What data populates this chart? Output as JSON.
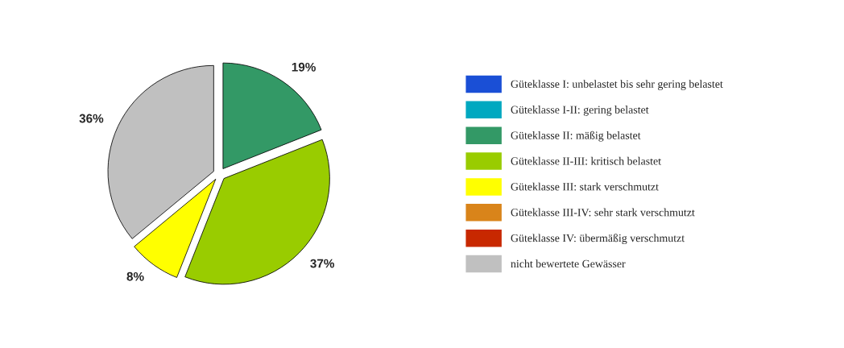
{
  "chart_data": {
    "type": "pie",
    "categories": [
      "Güteklasse I: unbelastet bis sehr gering belastet",
      "Güteklasse I-II: gering belastet",
      "Güteklasse II: mäßig belastet",
      "Güteklasse II-III: kritisch belastet",
      "Güteklasse III: stark verschmutzt",
      "Güteklasse III-IV: sehr stark verschmutzt",
      "Güteklasse IV: übermäßig verschmutzt",
      "nicht bewertete Gewässer"
    ],
    "values": [
      0,
      0,
      19,
      37,
      8,
      0,
      0,
      36
    ],
    "colors": [
      "#1a4fd6",
      "#00a8c0",
      "#339966",
      "#99cc00",
      "#ffff00",
      "#d9841a",
      "#c82800",
      "#c0c0c0"
    ],
    "value_labels": [
      null,
      null,
      "19%",
      "37%",
      "8%",
      null,
      null,
      "36%"
    ],
    "legend": "right"
  }
}
